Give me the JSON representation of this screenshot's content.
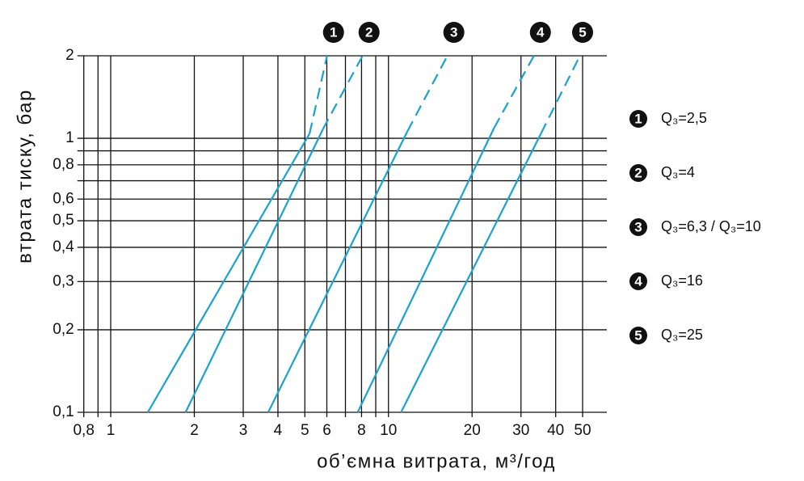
{
  "chart_data": {
    "type": "line",
    "x_label": "об’ємна витрата, м³/год",
    "y_label": "втрата тиску, бар",
    "xscale": "log",
    "yscale": "log",
    "grid": true,
    "xlim": [
      0.8,
      50
    ],
    "ylim": [
      0.1,
      2
    ],
    "xticks": [
      {
        "value": 0.8,
        "label": "0,8"
      },
      1,
      2,
      3,
      4,
      5,
      6,
      8,
      10,
      20,
      30,
      40,
      50
    ],
    "xminor": [
      0.9,
      7,
      9
    ],
    "yticks": [
      {
        "value": 0.1,
        "label": "0,1"
      },
      {
        "value": 0.2,
        "label": "0,2"
      },
      {
        "value": 0.3,
        "label": "0,3"
      },
      {
        "value": 0.4,
        "label": "0,4"
      },
      {
        "value": 0.5,
        "label": "0,5"
      },
      {
        "value": 0.6,
        "label": "0,6"
      },
      {
        "value": 0.8,
        "label": "0,8"
      },
      1,
      2
    ],
    "yminor": [
      0.7,
      0.9
    ],
    "segment_styles": [
      "solid",
      "dashed"
    ],
    "legend_position": "right",
    "series": [
      {
        "marker": "1",
        "name": "Q₃=2,5",
        "color": "#1aa3cc",
        "x": [
          1.36,
          5.2,
          6.01
        ],
        "values": [
          0.1,
          1.04,
          2
        ]
      },
      {
        "marker": "2",
        "name": "Q₃=4",
        "color": "#1aa3cc",
        "x": [
          1.86,
          5.81,
          8.07
        ],
        "values": [
          0.1,
          1.08,
          2
        ]
      },
      {
        "marker": "3",
        "name": "Q₃=6,3 / Q₃=10",
        "color": "#1aa3cc",
        "x": [
          3.69,
          11.7,
          16.3
        ],
        "values": [
          0.1,
          1.06,
          2
        ]
      },
      {
        "marker": "4",
        "name": "Q₃=16",
        "color": "#1aa3cc",
        "x": [
          7.75,
          24.0,
          33.4
        ],
        "values": [
          0.1,
          1.09,
          2
        ]
      },
      {
        "marker": "5",
        "name": "Q₃=25",
        "color": "#1aa3cc",
        "x": [
          11.1,
          35.4,
          48.9
        ],
        "values": [
          0.1,
          1.04,
          2
        ]
      }
    ]
  }
}
